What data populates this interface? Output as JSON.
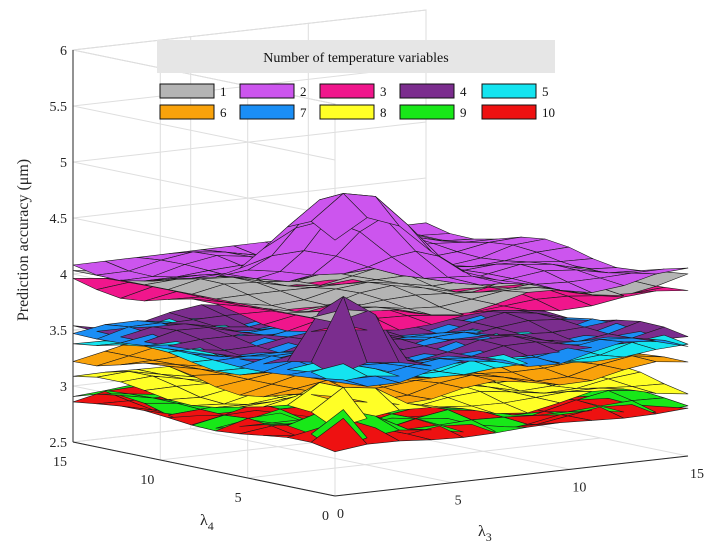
{
  "chart_data": {
    "type": "surface",
    "title": "",
    "ylabel": "Prediction accuracy (μm)",
    "xlabel_base": "λ",
    "xlabel_sub": "3",
    "zlabel_base": "λ",
    "zlabel_sub": "4",
    "x_range": [
      0,
      15
    ],
    "depth_range": [
      0,
      15
    ],
    "ylim": [
      2.5,
      6
    ],
    "y_ticks": [
      "2.5",
      "3",
      "3.5",
      "4",
      "4.5",
      "5",
      "5.5",
      "6"
    ],
    "y_tick_values": [
      2.5,
      3,
      3.5,
      4,
      4.5,
      5,
      5.5,
      6
    ],
    "x_ticks": [
      "0",
      "5",
      "10",
      "15"
    ],
    "x_tick_values": [
      0,
      5,
      10,
      15
    ],
    "depth_ticks": [
      "0",
      "5",
      "10",
      "15"
    ],
    "depth_tick_values": [
      0,
      5,
      10,
      15
    ],
    "grid": true,
    "legend_title": "Number of temperature variables",
    "legend_position": "top",
    "series": [
      {
        "name": "1",
        "color": "#b4b4b4",
        "base": 4.05,
        "spike": 0,
        "spread": 0
      },
      {
        "name": "2",
        "color": "#cc55ee",
        "base": 4.1,
        "spike": 1.05,
        "spread": 4
      },
      {
        "name": "3",
        "color": "#f0168c",
        "base": 3.95,
        "spike": 0,
        "spread": 0
      },
      {
        "name": "4",
        "color": "#7b2d8e",
        "base": 3.55,
        "spike": 0.75,
        "spread": 1.5
      },
      {
        "name": "5",
        "color": "#14e4f0",
        "base": 3.45,
        "spike": 0.1,
        "spread": 3
      },
      {
        "name": "6",
        "color": "#f9a20b",
        "base": 3.3,
        "spike": 0,
        "spread": 0
      },
      {
        "name": "7",
        "color": "#1a8ef5",
        "base": 3.5,
        "spike": 0,
        "spread": 0
      },
      {
        "name": "8",
        "color": "#ffff26",
        "base": 3.1,
        "spike": 0.35,
        "spread": 2
      },
      {
        "name": "9",
        "color": "#18e818",
        "base": 2.95,
        "spike": 0.3,
        "spread": 1.5
      },
      {
        "name": "10",
        "color": "#ee1111",
        "base": 2.9,
        "spike": 0.35,
        "spread": 1.2
      }
    ]
  }
}
